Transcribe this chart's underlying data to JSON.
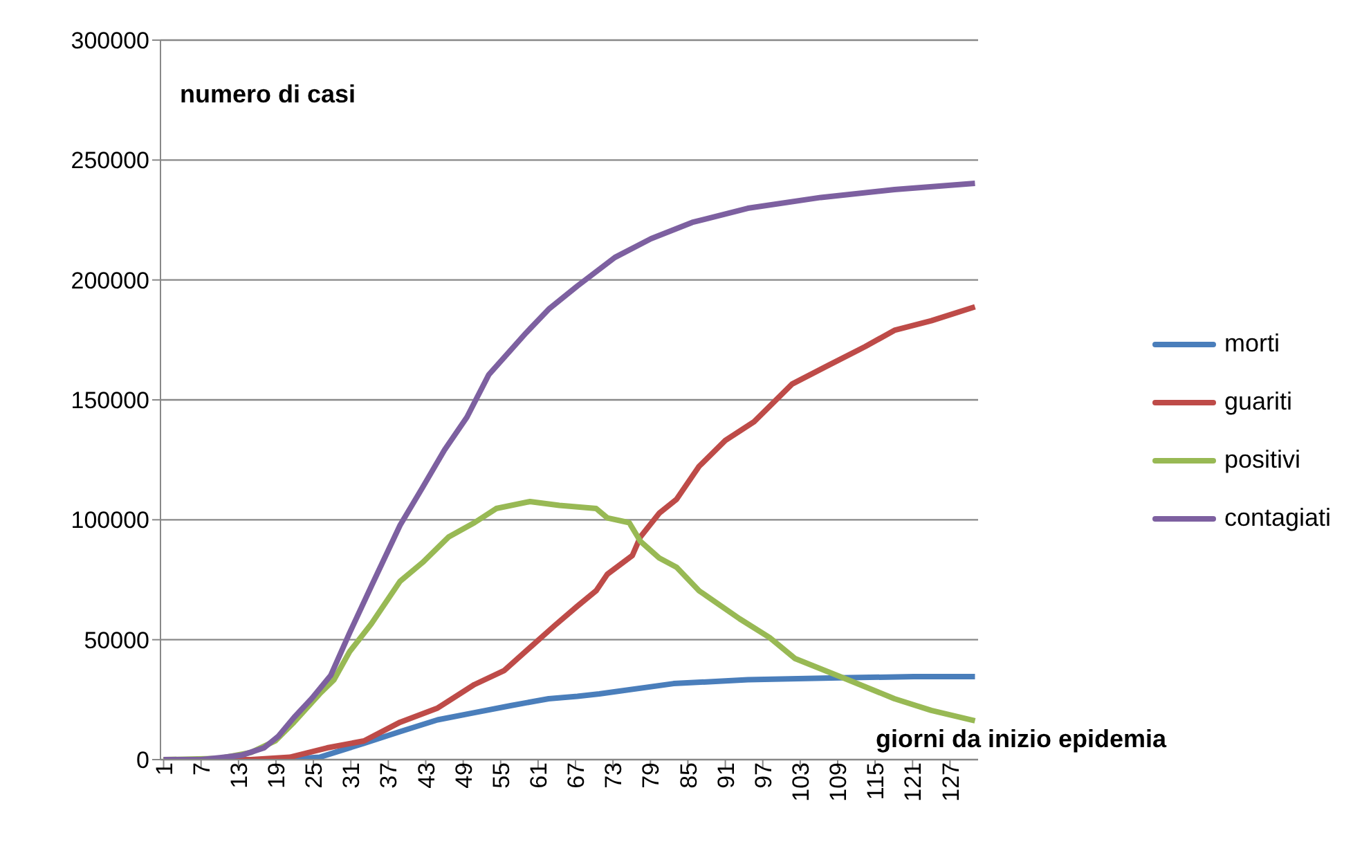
{
  "chart_data": {
    "type": "line",
    "ylabel": "numero di casi",
    "xlabel": "giorni da inizio epidemia",
    "xlim": [
      0.5,
      131.5
    ],
    "xticks": [
      1,
      7,
      13,
      19,
      25,
      31,
      37,
      43,
      49,
      55,
      61,
      67,
      73,
      79,
      85,
      91,
      97,
      103,
      109,
      115,
      121,
      127
    ],
    "ylim": [
      0,
      300000
    ],
    "yticks": [
      0,
      50000,
      100000,
      150000,
      200000,
      250000,
      300000
    ],
    "grid": "y",
    "legend": "right",
    "series": [
      {
        "name": "morti",
        "color": "#4a7ebb",
        "x": [
          1,
          20,
          26,
          33.1,
          38.9,
          44.9,
          50.8,
          56.6,
          62.7,
          67.3,
          70.8,
          82.7,
          94.6,
          109.3,
          121.2,
          131
        ],
        "values": [
          0,
          0,
          1000,
          6800,
          11700,
          16600,
          19600,
          22500,
          25400,
          26400,
          27400,
          31700,
          33300,
          34100,
          34600,
          34600
        ]
      },
      {
        "name": "guariti",
        "color": "#be4b48",
        "x": [
          1,
          15,
          21.2,
          27.2,
          33.1,
          38.9,
          44.9,
          50.8,
          55.6,
          60.2,
          63.7,
          67.3,
          70.3,
          72.1,
          76.1,
          77.4,
          80.4,
          83.2,
          86.8,
          91,
          95.6,
          101.7,
          107.5,
          113.4,
          118.1,
          124,
          131
        ],
        "values": [
          0,
          0,
          1000,
          4900,
          7800,
          15600,
          21500,
          31300,
          37200,
          47900,
          56000,
          64000,
          70400,
          77300,
          85100,
          92900,
          102700,
          108600,
          122300,
          133100,
          140900,
          156600,
          164400,
          172200,
          179000,
          183000,
          188800
        ]
      },
      {
        "name": "positivi",
        "color": "#98b954",
        "x": [
          1,
          10,
          15,
          18.9,
          21.9,
          26,
          28.3,
          30.8,
          34.3,
          38.9,
          42.5,
          46.7,
          50.8,
          54.3,
          59.7,
          64.4,
          70.3,
          72.1,
          75.6,
          77.4,
          80.4,
          83.2,
          86.8,
          93.3,
          98.1,
          102.2,
          109.8,
          118.1,
          124,
          131
        ],
        "values": [
          0,
          500,
          3000,
          7800,
          15600,
          27400,
          33300,
          45000,
          56700,
          74400,
          82200,
          92900,
          98800,
          104700,
          107600,
          106000,
          104700,
          100800,
          98800,
          91000,
          84100,
          80200,
          70400,
          58700,
          50900,
          42100,
          34200,
          25400,
          20500,
          16200
        ]
      },
      {
        "name": "contagiati",
        "color": "#7d60a0",
        "x": [
          1,
          7,
          10,
          13.6,
          17.1,
          19.4,
          21.9,
          24.7,
          27.8,
          30.8,
          34.3,
          38.9,
          42.5,
          46,
          49.6,
          53.1,
          59.1,
          62.7,
          67.3,
          73.3,
          79.1,
          85.7,
          94.6,
          106.3,
          118.1,
          131
        ],
        "values": [
          0,
          0,
          800,
          1900,
          4900,
          9800,
          17600,
          25400,
          35200,
          52800,
          72400,
          97800,
          113500,
          129100,
          142800,
          160500,
          178000,
          187800,
          197500,
          209400,
          217200,
          224000,
          229900,
          234400,
          237700,
          240300
        ]
      }
    ]
  }
}
